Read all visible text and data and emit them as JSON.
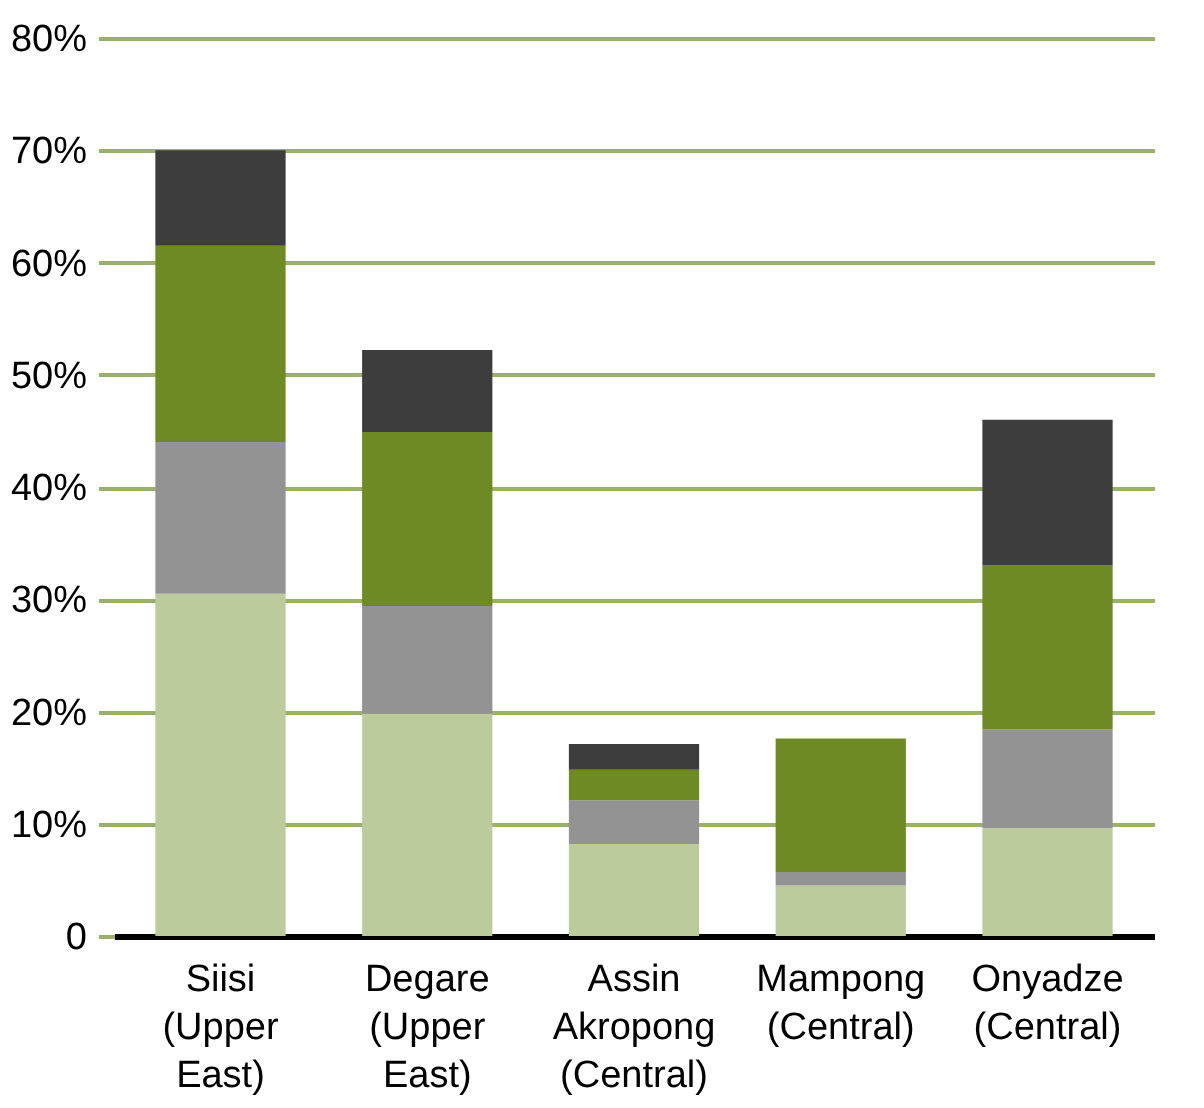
{
  "chart_data": {
    "type": "bar",
    "stacked": true,
    "categories": [
      "Siisi (Upper East)",
      "Degare (Upper East)",
      "Assin Akropong (Central)",
      "Mampong (Central)",
      "Onyadze (Central)"
    ],
    "series": [
      {
        "color": "#bccb9c",
        "values": [
          30.5,
          19.8,
          8.2,
          4.5,
          9.6
        ]
      },
      {
        "color": "#939393",
        "values": [
          13.5,
          9.6,
          3.9,
          1.2,
          8.8
        ]
      },
      {
        "color": "#6e8a24",
        "values": [
          17.5,
          15.5,
          2.7,
          11.9,
          14.6
        ]
      },
      {
        "color": "#3d3d3d",
        "values": [
          8.5,
          7.3,
          2.3,
          0,
          13.0
        ]
      }
    ],
    "ylim": [
      0,
      80
    ],
    "yticks": [
      0,
      {
        "value": 10,
        "label": "10%"
      },
      {
        "value": 20,
        "label": "20%"
      },
      {
        "value": 30,
        "label": "30%"
      },
      {
        "value": 40,
        "label": "40%"
      },
      {
        "value": 50,
        "label": "50%"
      },
      {
        "value": 60,
        "label": "60%"
      },
      {
        "value": 70,
        "label": "70%"
      },
      {
        "value": 80,
        "label": "80%"
      }
    ],
    "grid": true
  }
}
